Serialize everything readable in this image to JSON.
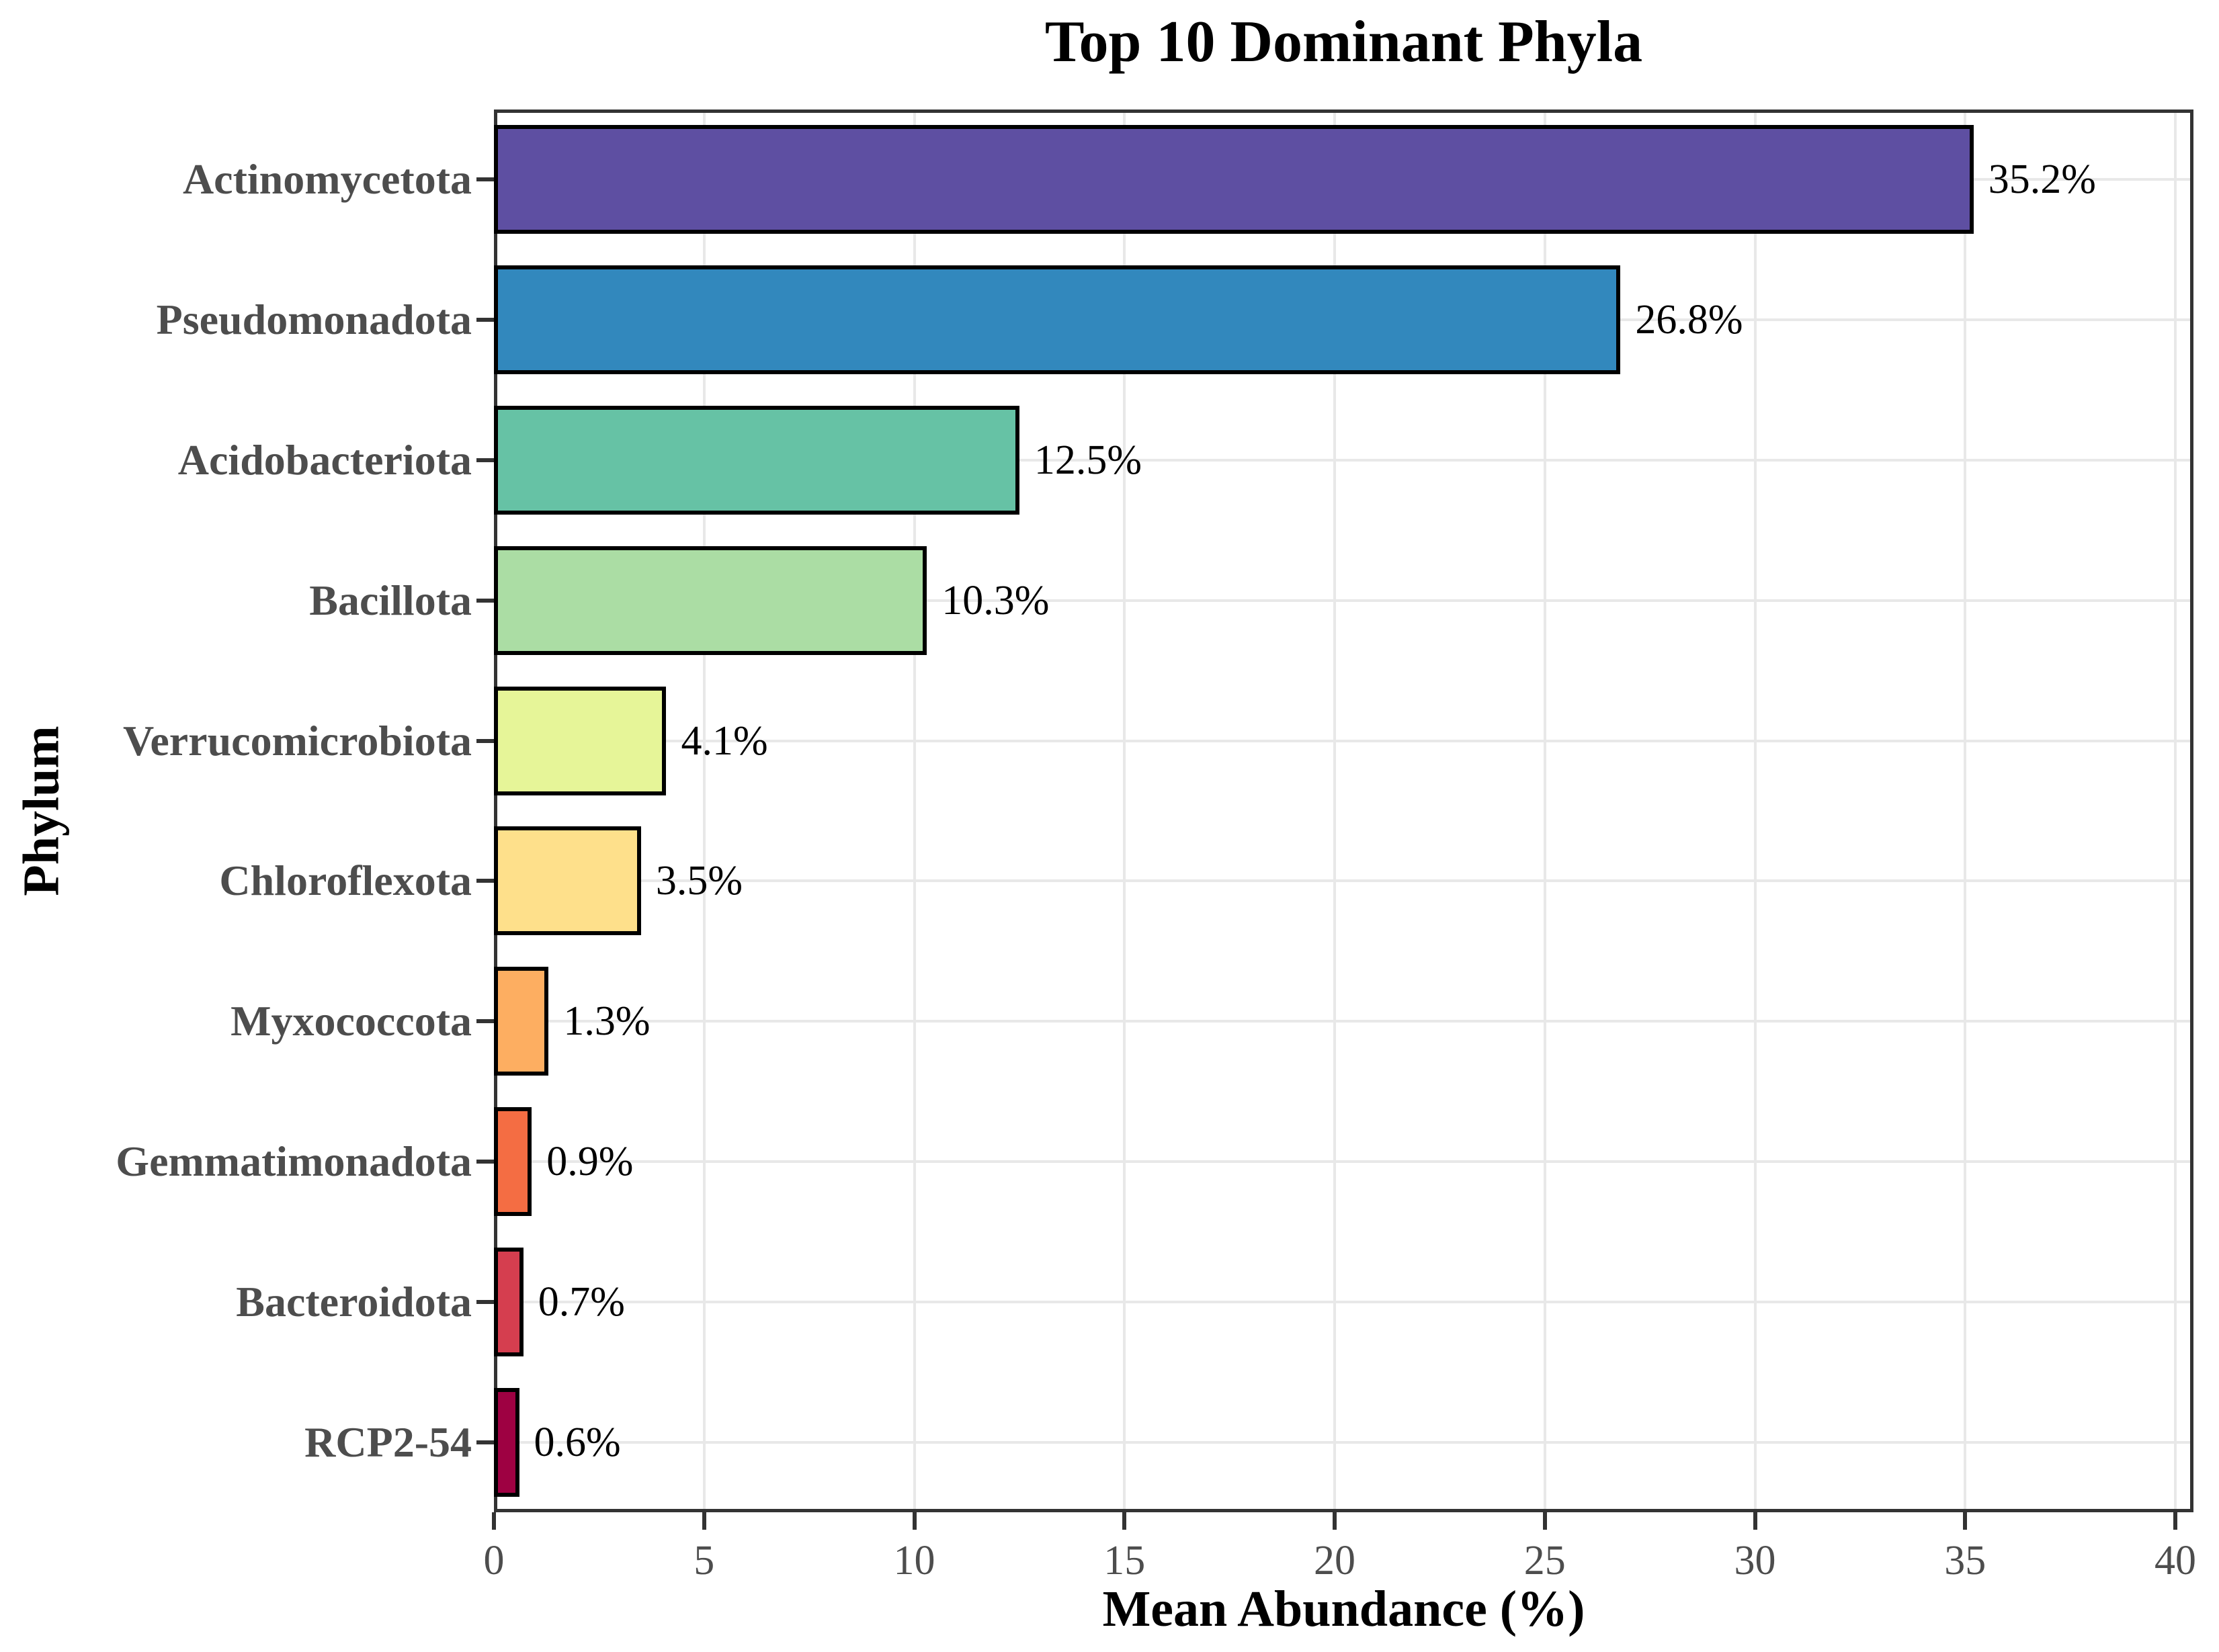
{
  "chart_data": {
    "type": "bar",
    "orientation": "horizontal",
    "title": "Top 10 Dominant Phyla",
    "xlabel": "Mean Abundance (%)",
    "ylabel": "Phylum",
    "xlim": [
      0,
      40
    ],
    "x_ticks": [
      0,
      5,
      10,
      15,
      20,
      25,
      30,
      35,
      40
    ],
    "grid": "major-only",
    "legend": "none",
    "categories": [
      "Actinomycetota",
      "Pseudomonadota",
      "Acidobacteriota",
      "Bacillota",
      "Verrucomicrobiota",
      "Chloroflexota",
      "Myxococcota",
      "Gemmatimonadota",
      "Bacteroidota",
      "RCP2-54"
    ],
    "values": [
      35.2,
      26.8,
      12.5,
      10.3,
      4.1,
      3.5,
      1.3,
      0.9,
      0.7,
      0.6
    ],
    "value_labels": [
      "35.2%",
      "26.8%",
      "12.5%",
      "10.3%",
      "4.1%",
      "3.5%",
      "1.3%",
      "0.9%",
      "0.7%",
      "0.6%"
    ],
    "bar_colors": [
      "#5E4FA2",
      "#3288BD",
      "#66C2A5",
      "#ABDDA4",
      "#E6F598",
      "#FEE08B",
      "#FDAE61",
      "#F46D43",
      "#D53E4F",
      "#9E0142"
    ],
    "colors": {
      "background": "#FFFFFF",
      "panel_background": "#FFFFFF",
      "panel_border": "#333333",
      "gridline": "#E8E8E8",
      "tick": "#333333",
      "tick_label": "#4D4D4D",
      "category_label": "#4D4D4D",
      "bar_border": "#000000",
      "value_label": "#000000",
      "title_color": "#000000"
    }
  }
}
